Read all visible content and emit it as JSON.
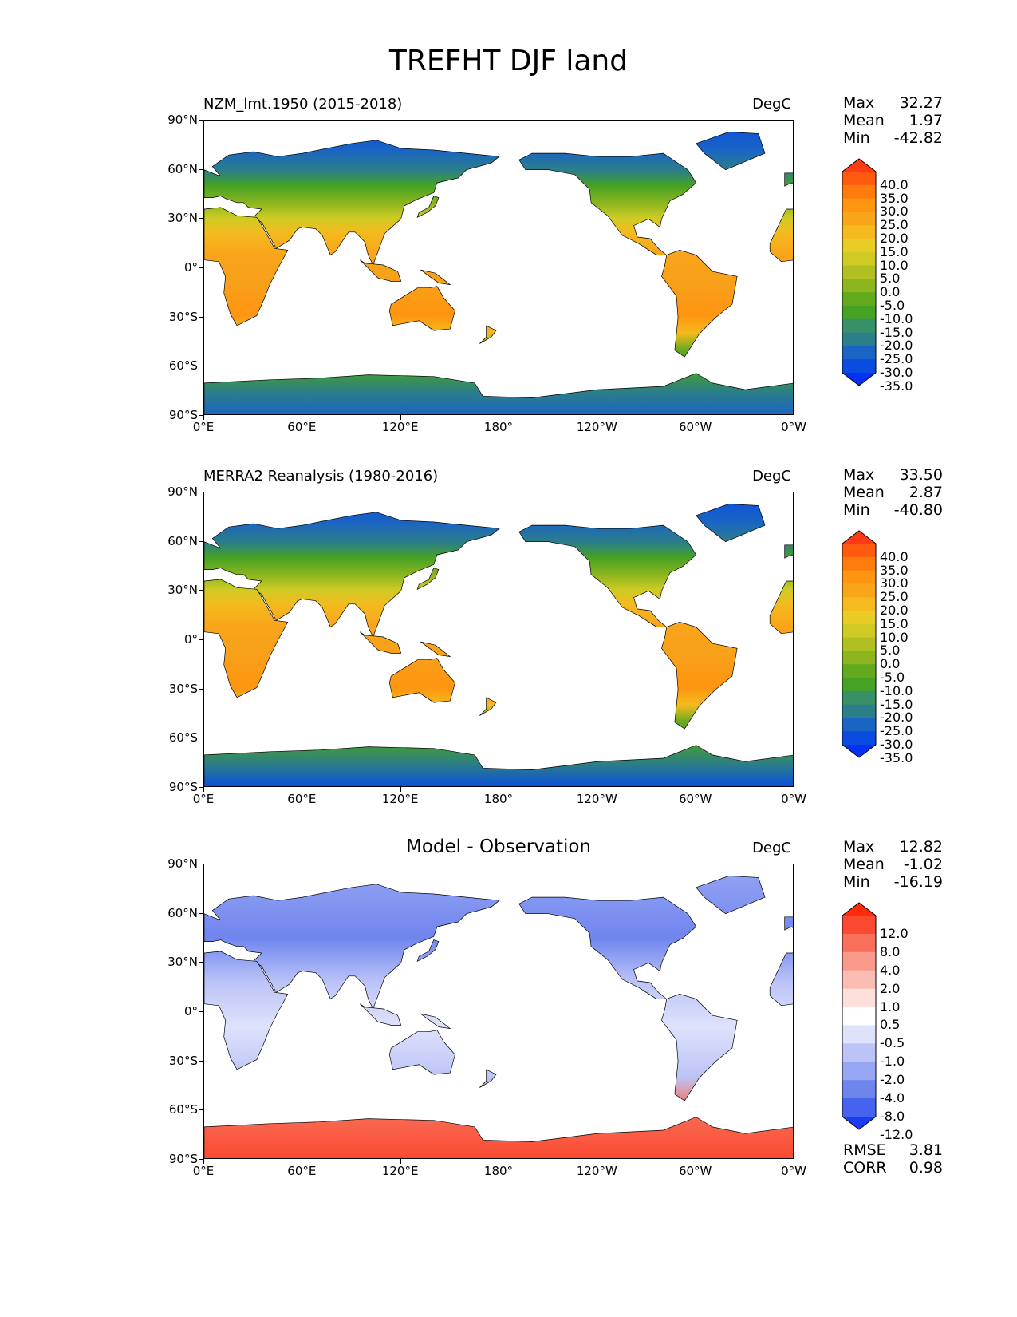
{
  "title": "TREFHT DJF land",
  "lat_labels": [
    "90°N",
    "60°N",
    "30°N",
    "0°",
    "30°S",
    "60°S",
    "90°S"
  ],
  "lon_labels": [
    "0°E",
    "60°E",
    "120°E",
    "180°",
    "120°W",
    "60°W",
    "0°W"
  ],
  "panels": [
    {
      "name": "NZM_lmt.1950 (2015-2018)",
      "units": "DegC",
      "stats": {
        "max_label": "Max",
        "max": "32.27",
        "mean_label": "Mean",
        "mean": "1.97",
        "min_label": "Min",
        "min": "-42.82"
      },
      "colorbar": {
        "levels": [
          "40.0",
          "35.0",
          "30.0",
          "25.0",
          "20.0",
          "15.0",
          "10.0",
          "5.0",
          "0.0",
          "-5.0",
          "-10.0",
          "-15.0",
          "-20.0",
          "-25.0",
          "-30.0",
          "-35.0"
        ],
        "colors": [
          "#ff3a14",
          "#ff5a10",
          "#ff7b0c",
          "#ff9510",
          "#f9a51a",
          "#f4ba1e",
          "#e9cd24",
          "#cfcb24",
          "#b0c022",
          "#8db61e",
          "#63a91e",
          "#45a224",
          "#389166",
          "#2c7e88",
          "#1a64c4",
          "#0a4ce0",
          "#0530f6"
        ]
      }
    },
    {
      "name": "MERRA2 Reanalysis (1980-2016)",
      "units": "DegC",
      "stats": {
        "max_label": "Max",
        "max": "33.50",
        "mean_label": "Mean",
        "mean": "2.87",
        "min_label": "Min",
        "min": "-40.80"
      },
      "colorbar": {
        "levels": [
          "40.0",
          "35.0",
          "30.0",
          "25.0",
          "20.0",
          "15.0",
          "10.0",
          "5.0",
          "0.0",
          "-5.0",
          "-10.0",
          "-15.0",
          "-20.0",
          "-25.0",
          "-30.0",
          "-35.0"
        ],
        "colors": [
          "#ff3a14",
          "#ff5a10",
          "#ff7b0c",
          "#ff9510",
          "#f9a51a",
          "#f4ba1e",
          "#e9cd24",
          "#cfcb24",
          "#b0c022",
          "#8db61e",
          "#63a91e",
          "#45a224",
          "#389166",
          "#2c7e88",
          "#1a64c4",
          "#0a4ce0",
          "#0530f6"
        ]
      }
    },
    {
      "name": "Model - Observation",
      "units": "DegC",
      "stats": {
        "max_label": "Max",
        "max": "12.82",
        "mean_label": "Mean",
        "mean": "-1.02",
        "min_label": "Min",
        "min": "-16.19"
      },
      "colorbar": {
        "levels": [
          "12.0",
          "8.0",
          "4.0",
          "2.0",
          "1.0",
          "0.5",
          "-0.5",
          "-1.0",
          "-2.0",
          "-4.0",
          "-8.0",
          "-12.0"
        ],
        "colors": [
          "#ff2a08",
          "#fb4a30",
          "#f8705a",
          "#f99a8a",
          "#fbbdb3",
          "#fde0dc",
          "#ffffff",
          "#dfe2fb",
          "#bcc4f7",
          "#97a6f3",
          "#6f85ee",
          "#4563ec",
          "#1a3cf4"
        ]
      },
      "metrics": {
        "rmse_label": "RMSE",
        "rmse": "3.81",
        "corr_label": "CORR",
        "corr": "0.98"
      }
    }
  ]
}
